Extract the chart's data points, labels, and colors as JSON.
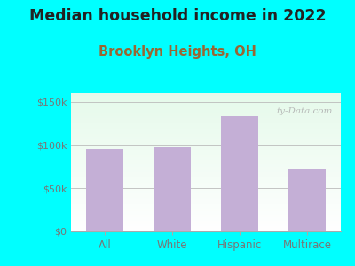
{
  "title": "Median household income in 2022",
  "subtitle": "Brooklyn Heights, OH",
  "categories": [
    "All",
    "White",
    "Hispanic",
    "Multirace"
  ],
  "values": [
    95000,
    97000,
    133000,
    72000
  ],
  "bar_color": "#c4afd6",
  "title_fontsize": 12.5,
  "subtitle_fontsize": 10.5,
  "subtitle_color": "#996633",
  "title_color": "#222222",
  "tick_color": "#777777",
  "background_outer": "#00FFFF",
  "yticks": [
    0,
    50000,
    100000,
    150000
  ],
  "ytick_labels": [
    "$0",
    "$50k",
    "$100k",
    "$150k"
  ],
  "ylim": [
    0,
    160000
  ],
  "watermark": "ty-Data.com"
}
